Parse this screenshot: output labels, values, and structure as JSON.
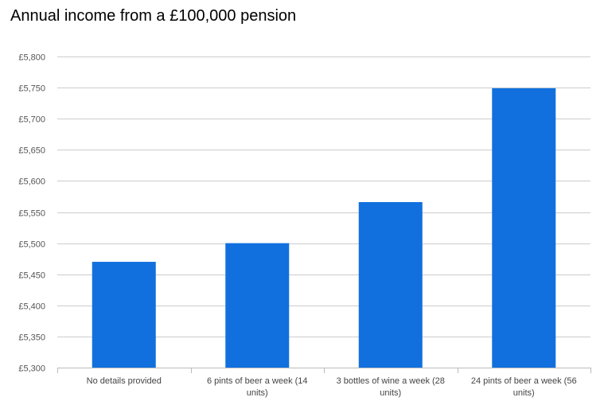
{
  "chart_data": {
    "type": "bar",
    "title": "Annual income from a £100,000 pension",
    "categories": [
      [
        "No details provided"
      ],
      [
        "6 pints of beer a week (14",
        "units)"
      ],
      [
        "3 bottles of wine a week (28",
        "units)"
      ],
      [
        "24 pints of beer a week (56",
        "units)"
      ]
    ],
    "values": [
      5470,
      5500,
      5566,
      5749
    ],
    "ylim": [
      5300,
      5800
    ],
    "yticks": [
      5300,
      5350,
      5400,
      5450,
      5500,
      5550,
      5600,
      5650,
      5700,
      5750,
      5800
    ],
    "ytick_labels": [
      "£5,300",
      "£5,350",
      "£5,400",
      "£5,450",
      "£5,500",
      "£5,550",
      "£5,600",
      "£5,650",
      "£5,700",
      "£5,750",
      "£5,800"
    ],
    "grid": true,
    "colors": {
      "bar": "#1170de",
      "grid": "#cccccc",
      "axis": "#bbbbbb"
    }
  }
}
